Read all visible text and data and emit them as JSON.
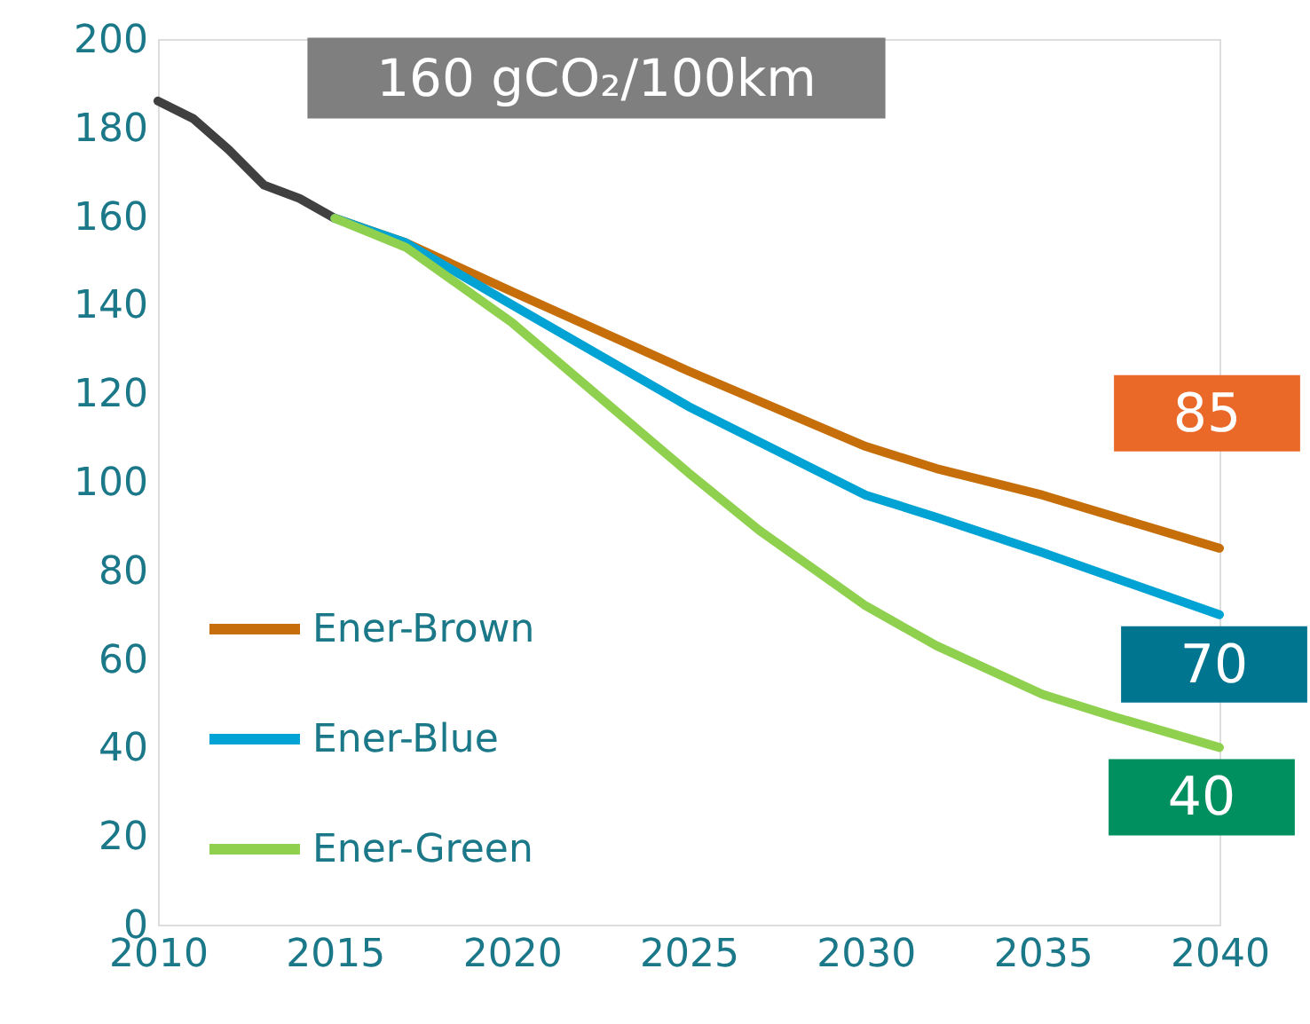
{
  "chart_data": {
    "type": "line",
    "annotations": [
      "160 gCO₂/100km"
    ],
    "series": [
      {
        "color": "#404040",
        "x": [
          2010,
          2011,
          2012,
          2013,
          2014,
          2015
        ],
        "values": [
          186,
          182,
          175,
          167,
          164,
          159.5
        ]
      },
      {
        "name": "Ener-Brown",
        "color": "#c66e0a",
        "x": [
          2015,
          2017,
          2020,
          2025,
          2030,
          2032,
          2035,
          2040
        ],
        "values": [
          159.5,
          154,
          143,
          125,
          108,
          103,
          97,
          85
        ],
        "value_labels": [
          null,
          null,
          null,
          null,
          null,
          null,
          null,
          "85"
        ]
      },
      {
        "name": "Ener-Blue",
        "color": "#00a3d4",
        "x": [
          2015,
          2017,
          2020,
          2025,
          2030,
          2032,
          2035,
          2040
        ],
        "values": [
          159.5,
          154,
          140,
          117,
          97,
          92,
          84,
          70
        ],
        "value_labels": [
          null,
          null,
          null,
          null,
          null,
          null,
          null,
          "70"
        ]
      },
      {
        "name": "Ener-Green",
        "color": "#8fd14f",
        "x": [
          2015,
          2017,
          2020,
          2025,
          2027,
          2030,
          2032,
          2035,
          2037,
          2040
        ],
        "values": [
          159.5,
          153,
          136,
          102,
          89,
          72,
          63,
          52,
          47,
          40
        ],
        "value_labels": [
          null,
          null,
          null,
          null,
          null,
          null,
          null,
          null,
          null,
          "40"
        ]
      }
    ],
    "xlim": [
      2010,
      2040
    ],
    "xticks": [
      2010,
      2015,
      2020,
      2025,
      2030,
      2035,
      2040
    ],
    "ylim": [
      0,
      200
    ],
    "yticks": [
      0,
      20,
      40,
      60,
      80,
      100,
      120,
      140,
      160,
      180,
      200
    ],
    "grid": false,
    "legend": "bottom left",
    "line_style": "solid"
  }
}
